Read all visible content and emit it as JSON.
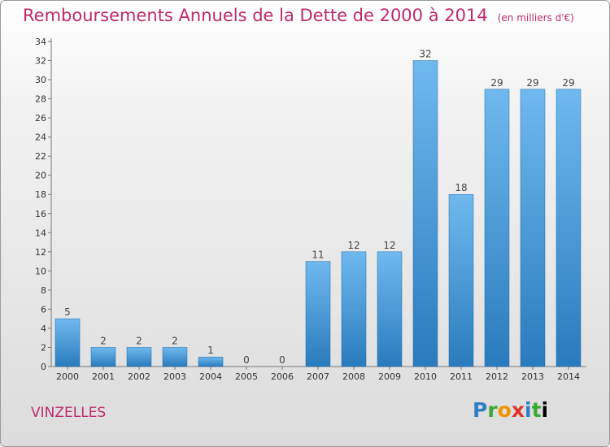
{
  "title": "Remboursements Annuels de la Dette de 2000 à 2014",
  "unit": "(en milliers d'€)",
  "commune": "VINZELLES",
  "logo": [
    "P",
    "r",
    "o",
    "x",
    "i",
    "t",
    "i"
  ],
  "colors": {
    "title": "#bd2a6c",
    "bar_light": "#6fb9ef",
    "bar_dark": "#2a7bbd"
  },
  "chart_data": {
    "type": "bar",
    "categories": [
      "2000",
      "2001",
      "2002",
      "2003",
      "2004",
      "2005",
      "2006",
      "2007",
      "2008",
      "2009",
      "2010",
      "2011",
      "2012",
      "2013",
      "2014"
    ],
    "values": [
      5,
      2,
      2,
      2,
      1,
      0,
      0,
      11,
      12,
      12,
      32,
      18,
      29,
      29,
      29
    ],
    "yticks": [
      0,
      2,
      4,
      6,
      8,
      10,
      12,
      14,
      16,
      18,
      20,
      22,
      24,
      26,
      28,
      30,
      32,
      34
    ],
    "ylim": [
      0,
      34
    ],
    "grid": false,
    "xlabel": "",
    "ylabel": ""
  }
}
